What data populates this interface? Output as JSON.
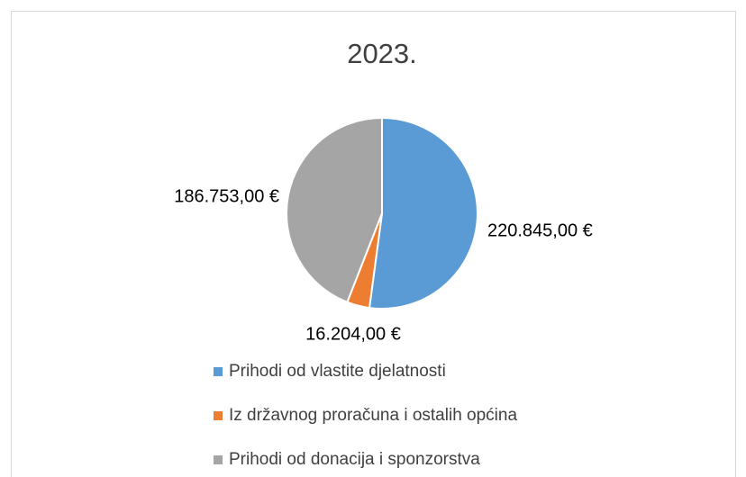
{
  "chart_data": {
    "type": "pie",
    "title": "2023.",
    "series": [
      {
        "name": "Prihodi od vlastite djelatnosti",
        "color": "#5b9bd5",
        "values": [
          220845
        ],
        "value_labels": [
          "220.845,00 €"
        ]
      },
      {
        "name": "Iz državnog proračuna i ostalih općina",
        "color": "#ed7d31",
        "values": [
          16204
        ],
        "value_labels": [
          "16.204,00 €"
        ]
      },
      {
        "name": "Prihodi od donacija i sponzorstva",
        "color": "#a5a5a5",
        "values": [
          186753
        ],
        "value_labels": [
          "186.753,00 €"
        ]
      }
    ],
    "legend": "bottom"
  }
}
